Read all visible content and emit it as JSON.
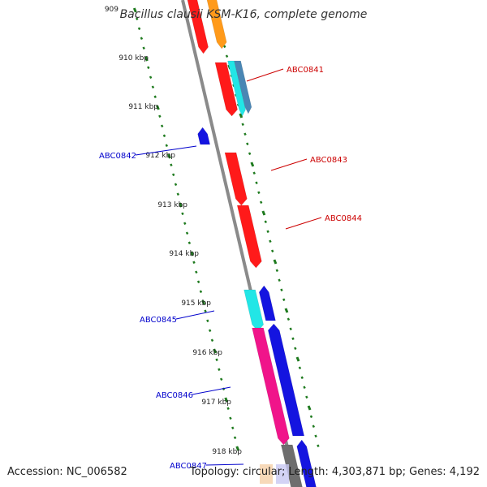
{
  "title": "Bacillus clausii KSM-K16, complete genome",
  "footer": {
    "accession": "Accession: NC_006582",
    "info": "Topology: circular; Length: 4,303,871 bp; Genes: 4,192"
  },
  "colors": {
    "backbone": "#8a8a8a",
    "ruler": "#1e7a1e",
    "label_right": "#cc0000",
    "label_left": "#0000cc",
    "red": "#ff1a1a",
    "orange": "#ff9a1a",
    "cyan": "#22e6e6",
    "steel": "#4a86b4",
    "blue": "#1414e0",
    "magenta": "#f0148a",
    "gray": "#6e6e6e",
    "peach": "#f5d0a8",
    "lavender": "#c8c8f2"
  },
  "ruler_labels": [
    "909",
    "910 kbp",
    "911 kbp",
    "912 kbp",
    "913 kbp",
    "914 kbp",
    "915 kbp",
    "916 kbp",
    "917 kbp",
    "918 kbp"
  ],
  "gene_labels": [
    {
      "text": "ABC0841",
      "side": "right"
    },
    {
      "text": "ABC0842",
      "side": "left"
    },
    {
      "text": "ABC0843",
      "side": "right"
    },
    {
      "text": "ABC0844",
      "side": "right"
    },
    {
      "text": "ABC0845",
      "side": "left"
    },
    {
      "text": "ABC0846",
      "side": "left"
    },
    {
      "text": "ABC0847",
      "side": "left"
    }
  ]
}
